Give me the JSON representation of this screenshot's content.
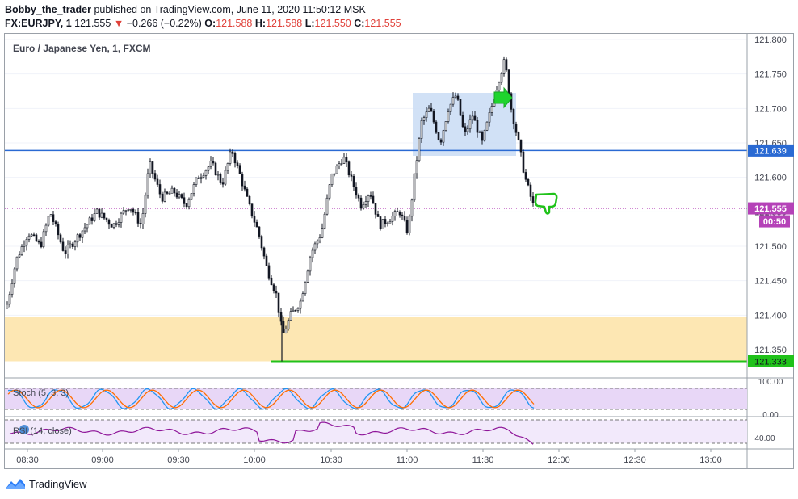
{
  "header": {
    "author": "Bobby_the_trader",
    "published_text": " published on TradingView.com, June 11, 2020 11:50:12 MSK",
    "symbol": "FX:EURJPY, 1",
    "last_price": "121.555",
    "change": "−0.266 (−0.22%)",
    "o_label": "O:",
    "o_value": "121.588",
    "h_label": "H:",
    "h_value": "121.588",
    "l_label": "L:",
    "l_value": "121.550",
    "c_label": "C:",
    "c_value": "121.555",
    "down_arrow": "▼"
  },
  "legend": {
    "title": "Euro / Japanese Yen, 1, FXCM"
  },
  "price_axis": {
    "ticks": [
      "121.800",
      "121.750",
      "121.700",
      "121.650",
      "121.600",
      "121.550",
      "121.500",
      "121.450",
      "121.400",
      "121.350"
    ],
    "tick_values": [
      121.8,
      121.75,
      121.7,
      121.65,
      121.6,
      121.55,
      121.5,
      121.45,
      121.4,
      121.35
    ],
    "resistance_label": "121.639",
    "resistance_value": 121.639,
    "current_label": "121.555",
    "current_value": 121.555,
    "countdown": "00:50",
    "support_label": "121.333",
    "support_value": 121.333
  },
  "stoch": {
    "label": "Stoch (5, 3, 3)",
    "ticks": [
      "100.00",
      "0.00"
    ]
  },
  "rsi": {
    "label": "RSI (14, close)",
    "ticks": [
      "40.00"
    ]
  },
  "time_axis": {
    "ticks": [
      "08:30",
      "09:00",
      "09:30",
      "10:00",
      "10:30",
      "11:00",
      "11:30",
      "12:00",
      "12:30",
      "13:00"
    ]
  },
  "zone": {
    "top_value": 121.397,
    "bottom_value": 121.333
  },
  "colors": {
    "blue_line": "#2a6ad3",
    "green_line": "#20c21a",
    "candle": "#131722",
    "candle_up_body": "#ffffff",
    "price_tag_purple": "#b542b8",
    "zone": "#fde7b3",
    "box": "#c9dcf5",
    "stoch_band": "#e8d7f7"
  },
  "icons": {
    "arrow": "green-arrow-right-icon",
    "thumb": "green-thumbs-down-icon",
    "logo": "tradingview-logo-icon"
  },
  "footer": {
    "brand": "TradingView"
  }
}
